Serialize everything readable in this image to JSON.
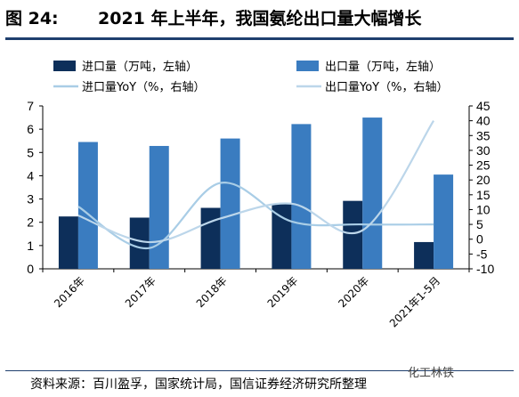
{
  "header": {
    "label": "图 24:",
    "title": "2021 年上半年，我国氨纶出口量大幅增长"
  },
  "footer": {
    "source": "资料来源：百川盈孚，国家统计局，国信证券经济研究所整理",
    "watermark": "化工林铁"
  },
  "colors": {
    "import_bar": "#0d2f5a",
    "export_bar": "#3a7cc0",
    "import_line": "#a9cde6",
    "export_line": "#bcd6ea",
    "rule": "#1f3f6e"
  },
  "chart_data": {
    "type": "bar",
    "categories": [
      "2016年",
      "2017年",
      "2018年",
      "2019年",
      "2020年",
      "2021年1-5月"
    ],
    "series": [
      {
        "name": "进口量（万吨，左轴）",
        "kind": "bar",
        "axis": "left",
        "values": [
          2.25,
          2.2,
          2.62,
          2.8,
          2.92,
          1.15
        ]
      },
      {
        "name": "出口量（万吨，左轴）",
        "kind": "bar",
        "axis": "left",
        "values": [
          5.45,
          5.28,
          5.6,
          6.22,
          6.5,
          4.05
        ]
      },
      {
        "name": "进口量YoY（%，右轴）",
        "kind": "line",
        "axis": "right",
        "values": [
          11,
          -3,
          19,
          6,
          5,
          5
        ]
      },
      {
        "name": "出口量YoY（%，右轴）",
        "kind": "line",
        "axis": "right",
        "values": [
          8,
          -1,
          7,
          12,
          3,
          40
        ]
      }
    ],
    "left_axis": {
      "min": 0,
      "max": 7,
      "ticks": [
        "0",
        "1",
        "2",
        "3",
        "4",
        "5",
        "6",
        "7"
      ]
    },
    "right_axis": {
      "min": -10,
      "max": 45,
      "ticks": [
        "-10",
        "-5",
        "0",
        "5",
        "10",
        "15",
        "20",
        "25",
        "30",
        "35",
        "40",
        "45"
      ]
    },
    "legend_position": "top",
    "grid": false
  }
}
